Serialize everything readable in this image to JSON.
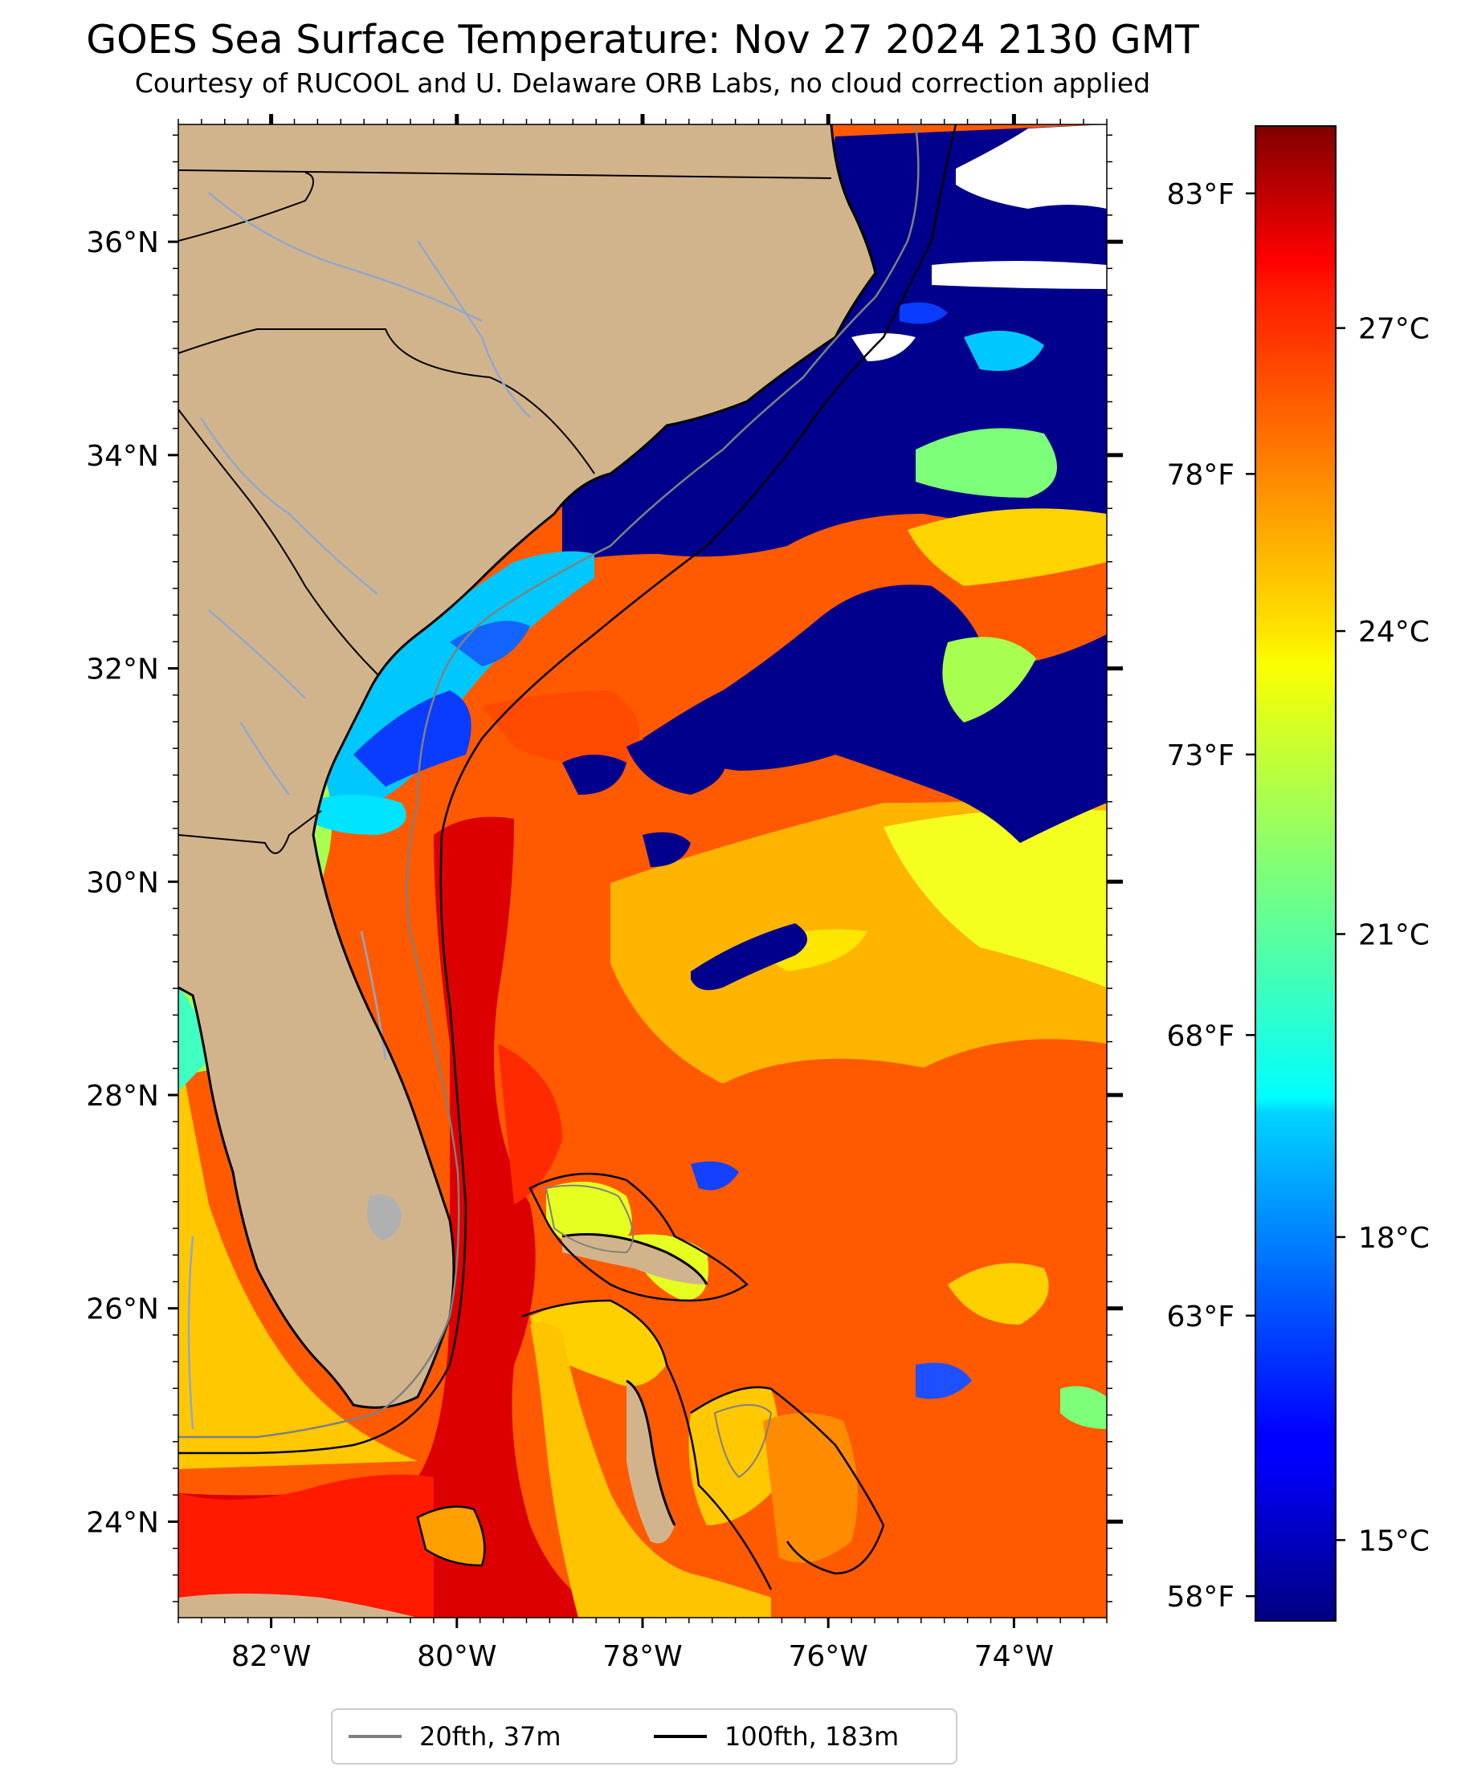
{
  "title": "GOES Sea Surface Temperature: Nov 27 2024 2130 GMT",
  "subtitle": "Courtesy of RUCOOL and U. Delaware ORB Labs, no cloud correction applied",
  "map": {
    "lon_range": [
      -83,
      -73
    ],
    "lat_range": [
      23.1,
      37.1
    ],
    "lon_ticks": [
      {
        "value": -82,
        "label": "82°W"
      },
      {
        "value": -80,
        "label": "80°W"
      },
      {
        "value": -78,
        "label": "78°W"
      },
      {
        "value": -76,
        "label": "76°W"
      },
      {
        "value": -74,
        "label": "74°W"
      }
    ],
    "lat_ticks": [
      {
        "value": 24,
        "label": "24°N"
      },
      {
        "value": 26,
        "label": "26°N"
      },
      {
        "value": 28,
        "label": "28°N"
      },
      {
        "value": 30,
        "label": "30°N"
      },
      {
        "value": 32,
        "label": "32°N"
      },
      {
        "value": 34,
        "label": "34°N"
      },
      {
        "value": 36,
        "label": "36°N"
      }
    ],
    "land_color": "#d2b48c",
    "lake_color": "#b0b0b0",
    "river_color": "#8fa8cc"
  },
  "colorbar": {
    "colormap": "jet",
    "range_c": [
      14.2,
      29.0
    ],
    "celsius_ticks": [
      {
        "value": 15,
        "label": "15°C"
      },
      {
        "value": 18,
        "label": "18°C"
      },
      {
        "value": 21,
        "label": "21°C"
      },
      {
        "value": 24,
        "label": "24°C"
      },
      {
        "value": 27,
        "label": "27°C"
      }
    ],
    "fahrenheit_ticks": [
      {
        "value": 58,
        "label": "58°F"
      },
      {
        "value": 63,
        "label": "63°F"
      },
      {
        "value": 68,
        "label": "68°F"
      },
      {
        "value": 73,
        "label": "73°F"
      },
      {
        "value": 78,
        "label": "78°F"
      },
      {
        "value": 83,
        "label": "83°F"
      }
    ]
  },
  "legend": {
    "items": [
      {
        "label": "20fth, 37m",
        "color": "#808080"
      },
      {
        "label": "100fth, 183m",
        "color": "#000000"
      }
    ]
  }
}
